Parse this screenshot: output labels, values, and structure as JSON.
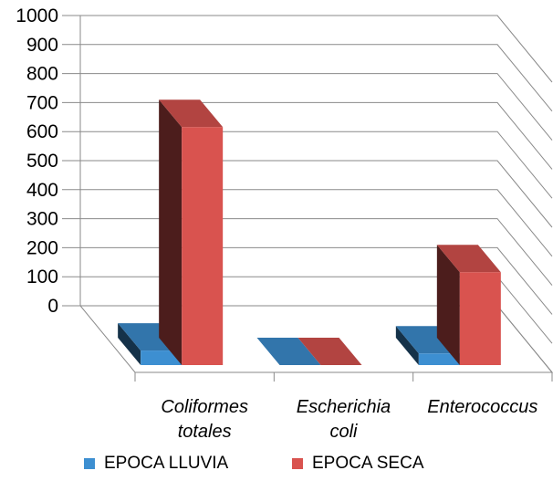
{
  "chart_data": {
    "type": "bar",
    "style": "3d-clustered-column",
    "categories": [
      [
        "Coliformes",
        "totales"
      ],
      [
        "Escherichia",
        "coli"
      ],
      [
        "Enterococcus"
      ]
    ],
    "series": [
      {
        "name": "EPOCA LLUVIA",
        "values": [
          50,
          0,
          40
        ],
        "color": "#3d8fd1"
      },
      {
        "name": "EPOCA SECA",
        "values": [
          820,
          0,
          320
        ],
        "color": "#d9534f"
      }
    ],
    "ylim": [
      0,
      1000
    ],
    "yticks": [
      "0",
      "100",
      "200",
      "300",
      "400",
      "500",
      "600",
      "700",
      "800",
      "900",
      "1000"
    ],
    "grid": true,
    "legend_position": "bottom"
  }
}
